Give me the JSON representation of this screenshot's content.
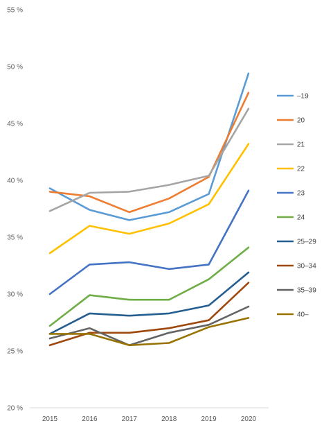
{
  "chart_data": {
    "type": "line",
    "title": "",
    "xlabel": "",
    "ylabel": "",
    "x": [
      2015,
      2016,
      2017,
      2018,
      2019,
      2020
    ],
    "x_tick_labels": [
      "2015",
      "2016",
      "2017",
      "2018",
      "2019",
      "2020"
    ],
    "ylim": [
      20,
      55
    ],
    "y_ticks": [
      20,
      25,
      30,
      35,
      40,
      45,
      50,
      55
    ],
    "y_tick_labels": [
      "20 %",
      "25 %",
      "30 %",
      "35 %",
      "40 %",
      "45 %",
      "50 %",
      "55 %"
    ],
    "grid": false,
    "legend_position": "right",
    "series": [
      {
        "name": "–19",
        "color": "#5B9BD5",
        "values": [
          39.3,
          37.4,
          36.5,
          37.2,
          38.8,
          49.4
        ]
      },
      {
        "name": "20",
        "color": "#ED7D31",
        "values": [
          39.0,
          38.6,
          37.2,
          38.4,
          40.3,
          47.7
        ]
      },
      {
        "name": "21",
        "color": "#A5A5A5",
        "values": [
          37.3,
          38.9,
          39.0,
          39.6,
          40.4,
          46.3
        ]
      },
      {
        "name": "22",
        "color": "#FFC000",
        "values": [
          33.6,
          36.0,
          35.3,
          36.2,
          37.9,
          43.2
        ]
      },
      {
        "name": "23",
        "color": "#4472C4",
        "values": [
          30.0,
          32.6,
          32.8,
          32.2,
          32.6,
          39.1
        ]
      },
      {
        "name": "24",
        "color": "#70AD47",
        "values": [
          27.2,
          29.9,
          29.5,
          29.5,
          31.3,
          34.1
        ]
      },
      {
        "name": "25–29",
        "color": "#255E91",
        "values": [
          26.5,
          28.3,
          28.1,
          28.3,
          29.0,
          31.9
        ]
      },
      {
        "name": "30–34",
        "color": "#9E480E",
        "values": [
          25.5,
          26.6,
          26.6,
          27.0,
          27.7,
          31.0
        ]
      },
      {
        "name": "35–39",
        "color": "#636363",
        "values": [
          26.1,
          27.0,
          25.5,
          26.6,
          27.3,
          28.9
        ]
      },
      {
        "name": "40–",
        "color": "#997300",
        "values": [
          26.5,
          26.5,
          25.5,
          25.7,
          27.1,
          27.9
        ]
      }
    ]
  }
}
